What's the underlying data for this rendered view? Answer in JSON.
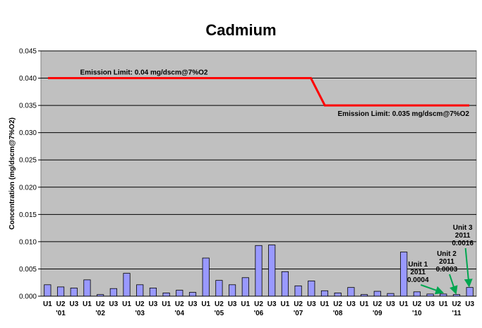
{
  "chart_data": {
    "type": "bar",
    "title": "Cadmium",
    "ylabel": "Concentration (mg/dscm@7%O2)",
    "xlabel": "",
    "ylim": [
      0,
      0.045
    ],
    "yticks": [
      "0.000",
      "0.005",
      "0.010",
      "0.015",
      "0.020",
      "0.025",
      "0.030",
      "0.035",
      "0.040",
      "0.045"
    ],
    "grid": true,
    "background": "#c0c0c0",
    "bar_color": "#9999ff",
    "limit_color": "#ff0000",
    "annotation_color": "#00a650",
    "categories": [
      "U1",
      "U2",
      "U3",
      "U1",
      "U2",
      "U3",
      "U1",
      "U2",
      "U3",
      "U1",
      "U2",
      "U3",
      "U1",
      "U2",
      "U3",
      "U1",
      "U2",
      "U3",
      "U1",
      "U2",
      "U3",
      "U1",
      "U2",
      "U3",
      "U1",
      "U2",
      "U3",
      "U1",
      "U2",
      "U3",
      "U1",
      "U2",
      "U3"
    ],
    "year_labels": [
      "'01",
      "'02",
      "'03",
      "'04",
      "'05",
      "'06",
      "'07",
      "'08",
      "'09",
      "'10",
      "'11"
    ],
    "values": [
      0.0021,
      0.0017,
      0.0015,
      0.003,
      0.0003,
      0.0014,
      0.0042,
      0.0021,
      0.0015,
      0.0006,
      0.0011,
      0.0007,
      0.007,
      0.0029,
      0.0021,
      0.0034,
      0.0093,
      0.0094,
      0.0045,
      0.0019,
      0.0028,
      0.001,
      0.0006,
      0.0016,
      0.0003,
      0.0009,
      0.0005,
      0.0081,
      0.0008,
      0.0004,
      0.0004,
      0.0003,
      0.0016
    ],
    "limits": [
      {
        "label": "Emission Limit: 0.04 mg/dscm@7%O2",
        "value": 0.04
      },
      {
        "label": "Emission Limit: 0.035 mg/dscm@7%O2",
        "value": 0.035
      }
    ],
    "annotations": [
      {
        "lines": [
          "Unit 1",
          "2011",
          "0.0004"
        ],
        "bar_index": 30
      },
      {
        "lines": [
          "Unit 2",
          "2011",
          "0.0003"
        ],
        "bar_index": 31
      },
      {
        "lines": [
          "Unit 3",
          "2011",
          "0.0016"
        ],
        "bar_index": 32
      }
    ]
  }
}
